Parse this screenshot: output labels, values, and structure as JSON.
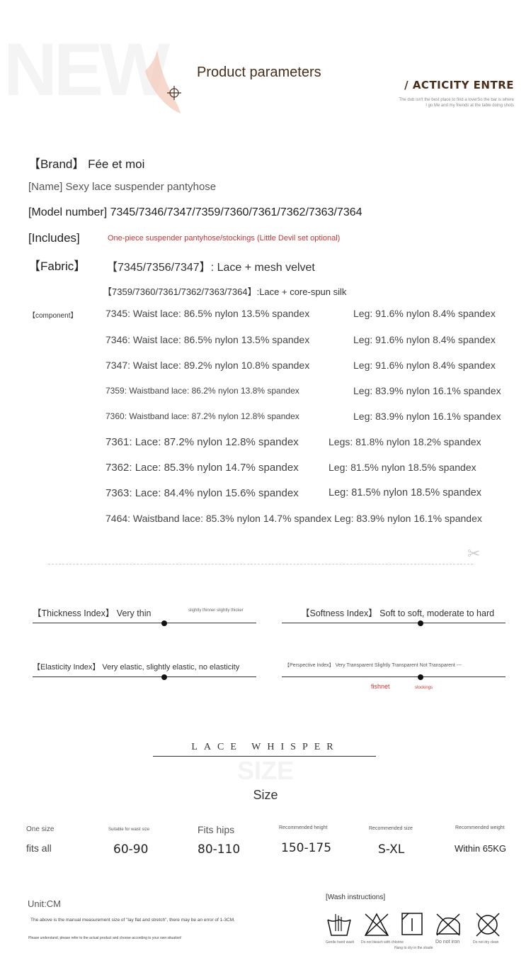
{
  "header": {
    "watermark": "NEW",
    "title": "Product parameters",
    "subtitle": "/ ACTICITY ENTRE",
    "tagline1": "The dub isn't the best place to find a loverSo the bar is where",
    "tagline2": "I go Me and my friends at the table doing shots"
  },
  "params": {
    "brand": "【Brand】 Fée et moi",
    "name": "[Name] Sexy lace suspender pantyhose",
    "model": "[Model number] 7345/7346/7347/7359/7360/7361/7362/7363/7364",
    "includes_label": "[Includes]",
    "includes_value": "One-piece suspender pantyhose/stockings (Little Devil set optional)",
    "fabric_label": "【Fabric】",
    "fabric_1": "【7345/7356/7347】: Lace + mesh velvet",
    "fabric_2": "【7359/7360/7361/7362/7363/7364】:Lace + core-spun silk",
    "component_label": "【component】",
    "components": [
      {
        "waist": "7345: Waist lace: 86.5% nylon 13.5% spandex",
        "leg": "Leg: 91.6% nylon 8.4% spandex"
      },
      {
        "waist": "7346: Waist lace: 86.5% nylon 13.5% spandex",
        "leg": "Leg: 91.6% nylon 8.4% spandex"
      },
      {
        "waist": "7347: Waist lace: 89.2% nylon 10.8% spandex",
        "leg": "Leg: 91.6% nylon 8.4% spandex"
      },
      {
        "waist": "7359: Waistband lace: 86.2% nylon 13.8% spandex",
        "leg": "Leg: 83.9% nylon 16.1% spandex"
      },
      {
        "waist": "7360: Waistband lace: 87.2% nylon 12.8% spandex",
        "leg": "Leg: 83.9% nylon 16.1% spandex"
      },
      {
        "waist": "7361: Lace: 87.2% nylon 12.8% spandex",
        "leg": "Legs: 81.8% nylon 18.2% spandex"
      },
      {
        "waist": "7362: Lace: 85.3% nylon 14.7% spandex",
        "leg": "Leg: 81.5% nylon 18.5% spandex"
      },
      {
        "waist": "7363: Lace: 84.4% nylon 15.6% spandex",
        "leg": "Leg: 81.5% nylon 18.5% spandex"
      },
      {
        "waist": "7464: Waistband lace: 85.3% nylon 14.7% spandex Leg: 83.9% nylon 16.1% spandex",
        "leg": ""
      }
    ]
  },
  "indices": {
    "thickness": {
      "label": "【Thickness Index】 Very thin",
      "hint": "slightly thinner slightly thicker",
      "level": 0.5
    },
    "softness": {
      "label": "【Softness Index】 Soft to soft, moderate to hard",
      "level": 0.6
    },
    "elasticity": {
      "label": "【Elasticity Index】 Very elastic, slightly elastic, no elasticity",
      "level": 0.5
    },
    "perspective": {
      "label": "【Perspective Index】 Very Transparent Slightly Transparent Not Transparent ---",
      "level": 0.6,
      "fishnet": "fishnet",
      "stockings": "stockings"
    }
  },
  "size_section": {
    "banner": "LACE WHISPER",
    "watermark": "SIZE",
    "title": "Size",
    "columns": [
      {
        "head": "One size",
        "value": "fits all"
      },
      {
        "head": "Suitable for waist size",
        "value": "60-90"
      },
      {
        "head": "Fits hips",
        "value": "80-110"
      },
      {
        "head": "Recommended height",
        "value": "150-175"
      },
      {
        "head": "Recommended size",
        "value": "S-XL"
      },
      {
        "head": "Recommended weight",
        "value": "Within 65KG"
      }
    ]
  },
  "footer": {
    "unit": "Unit:CM",
    "note1": "The above is the manual measurement size of \"lay flat and stretch\", there may be an error of 1-3CM.",
    "note2": "Please understand, please refer to the actual product and choose according to your own situation!",
    "wash_title": "[Wash instructions]",
    "wash": [
      {
        "icon": "hand-wash-icon",
        "label": "Gentle hand wash"
      },
      {
        "icon": "no-bleach-icon",
        "label": "Do not bleach with chlorine"
      },
      {
        "icon": "dry-in-shade-icon",
        "label": "Hang to dry in the shade"
      },
      {
        "icon": "no-iron-icon",
        "label": "Do not iron"
      },
      {
        "icon": "no-dry-clean-icon",
        "label": "Do not dry clean"
      }
    ]
  },
  "colors": {
    "brown": "#4a2e1c",
    "red": "#cc3333"
  }
}
